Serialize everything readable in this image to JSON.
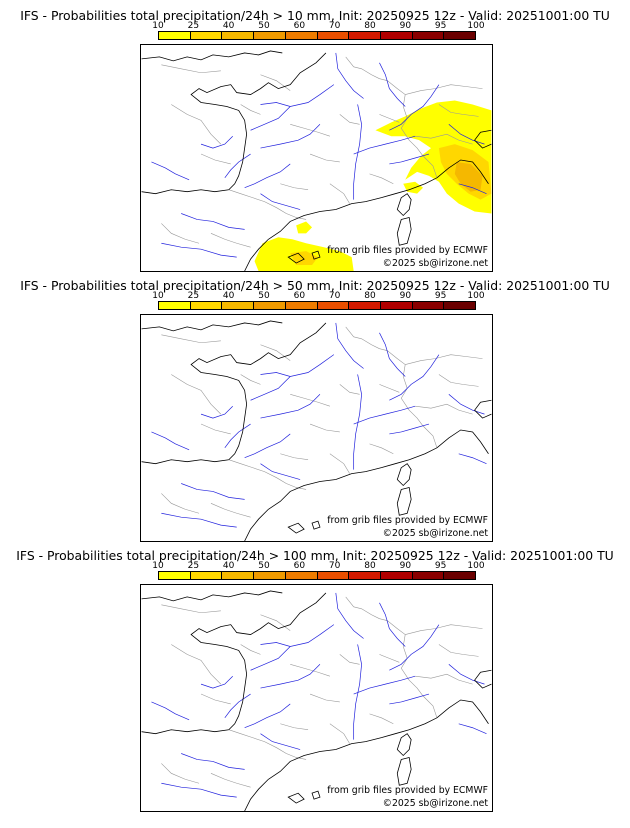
{
  "colorbar": {
    "labels": [
      "10",
      "25",
      "40",
      "50",
      "60",
      "70",
      "80",
      "90",
      "95",
      "100"
    ],
    "colors": [
      "#ffff00",
      "#ffd700",
      "#f5b800",
      "#f09a00",
      "#ee7c00",
      "#e94f00",
      "#d31a00",
      "#b00000",
      "#8a0000",
      "#6a0000"
    ]
  },
  "panels": [
    {
      "title": "IFS - Probabilities total precipitation/24h > 10 mm, Init: 20250925 12z - Valid: 20251001:00 TU",
      "has_precip": true
    },
    {
      "title": "IFS - Probabilities total precipitation/24h > 50 mm, Init: 20250925 12z - Valid: 20251001:00 TU",
      "has_precip": false
    },
    {
      "title": "IFS - Probabilities total precipitation/24h > 100 mm, Init: 20250925 12z - Valid: 20251001:00 TU",
      "has_precip": false
    }
  ],
  "credits": {
    "source": "from grib files provided by ECMWF",
    "copyright": "©2025 sb@irizone.net"
  },
  "map_colors": {
    "coast": "#000000",
    "rivers": "#2222dd",
    "borders": "#999999",
    "precip_low": "#ffff00",
    "precip_mid": "#ffd700",
    "precip_high": "#f5b800"
  }
}
